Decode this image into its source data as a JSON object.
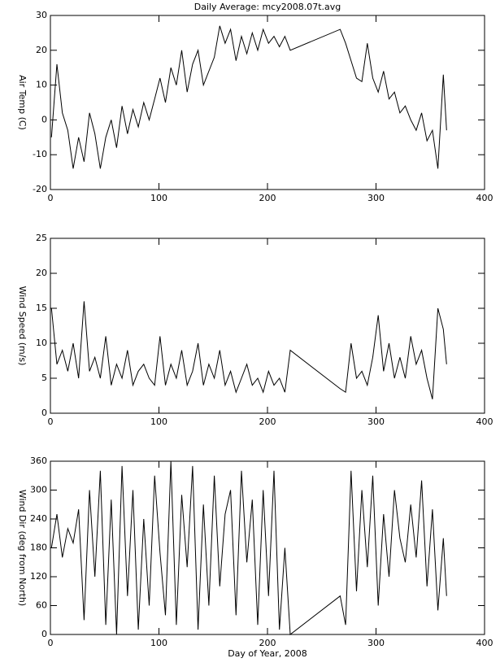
{
  "chart_data": [
    {
      "type": "line",
      "title": "Daily Average: mcy2008.07t.avg",
      "y_label": "Air Temp (C)",
      "x": [
        1,
        6,
        11,
        16,
        21,
        26,
        31,
        36,
        41,
        46,
        51,
        56,
        61,
        66,
        71,
        76,
        81,
        86,
        91,
        96,
        101,
        106,
        111,
        116,
        121,
        126,
        131,
        136,
        141,
        146,
        151,
        156,
        161,
        166,
        171,
        176,
        181,
        186,
        191,
        196,
        201,
        206,
        211,
        216,
        221,
        267,
        272,
        277,
        282,
        287,
        292,
        297,
        302,
        307,
        312,
        317,
        322,
        327,
        332,
        337,
        342,
        347,
        352,
        357,
        362,
        365
      ],
      "series": [
        {
          "name": "Air Temp",
          "color": "#000000",
          "values": [
            -5,
            16,
            2,
            -3,
            -14,
            -5,
            -12,
            2,
            -4,
            -14,
            -5,
            0,
            -8,
            4,
            -4,
            3,
            -2,
            5,
            0,
            6,
            12,
            5,
            15,
            10,
            20,
            8,
            16,
            20,
            10,
            14,
            18,
            27,
            22,
            26,
            17,
            24,
            19,
            25,
            20,
            26,
            22,
            24,
            21,
            24,
            20,
            26,
            22,
            17,
            12,
            11,
            22,
            12,
            8,
            14,
            6,
            8,
            2,
            4,
            0,
            -3,
            2,
            -6,
            -3,
            -14,
            13,
            -3
          ]
        }
      ],
      "xlim": [
        0,
        400
      ],
      "xticks": [
        0,
        100,
        200,
        300,
        400
      ],
      "ylim": [
        -20,
        30
      ],
      "yticks": [
        -20,
        -10,
        0,
        10,
        20,
        30
      ]
    },
    {
      "type": "line",
      "y_label": "Wind Speed (m/s)",
      "x": [
        1,
        6,
        11,
        16,
        21,
        26,
        31,
        36,
        41,
        46,
        51,
        56,
        61,
        66,
        71,
        76,
        81,
        86,
        91,
        96,
        101,
        106,
        111,
        116,
        121,
        126,
        131,
        136,
        141,
        146,
        151,
        156,
        161,
        166,
        171,
        176,
        181,
        186,
        191,
        196,
        201,
        206,
        211,
        216,
        221,
        267,
        272,
        277,
        282,
        287,
        292,
        297,
        302,
        307,
        312,
        317,
        322,
        327,
        332,
        337,
        342,
        347,
        352,
        357,
        362,
        365
      ],
      "series": [
        {
          "name": "Wind Speed",
          "color": "#000000",
          "values": [
            15,
            7,
            9,
            6,
            10,
            5,
            16,
            6,
            8,
            5,
            11,
            4,
            7,
            5,
            9,
            4,
            6,
            7,
            5,
            4,
            11,
            4,
            7,
            5,
            9,
            4,
            6,
            10,
            4,
            7,
            5,
            9,
            4,
            6,
            3,
            5,
            7,
            4,
            5,
            3,
            6,
            4,
            5,
            3,
            9,
            3.5,
            3,
            10,
            5,
            6,
            4,
            8,
            14,
            6,
            10,
            5,
            8,
            5,
            11,
            7,
            9,
            5,
            2,
            15,
            12,
            7
          ]
        }
      ],
      "xlim": [
        0,
        400
      ],
      "xticks": [
        0,
        100,
        200,
        300,
        400
      ],
      "ylim": [
        0,
        25
      ],
      "yticks": [
        0,
        5,
        10,
        15,
        20,
        25
      ]
    },
    {
      "type": "line",
      "y_label": "Wind Dir (deg from North)",
      "x_label": "Day of Year, 2008",
      "x": [
        1,
        6,
        11,
        16,
        21,
        26,
        31,
        36,
        41,
        46,
        51,
        56,
        61,
        66,
        71,
        76,
        81,
        86,
        91,
        96,
        101,
        106,
        111,
        116,
        121,
        126,
        131,
        136,
        141,
        146,
        151,
        156,
        161,
        166,
        171,
        176,
        181,
        186,
        191,
        196,
        201,
        206,
        211,
        216,
        221,
        267,
        272,
        277,
        282,
        287,
        292,
        297,
        302,
        307,
        312,
        317,
        322,
        327,
        332,
        337,
        342,
        347,
        352,
        357,
        362,
        365
      ],
      "series": [
        {
          "name": "Wind Dir",
          "color": "#000000",
          "values": [
            180,
            250,
            160,
            220,
            190,
            260,
            30,
            300,
            120,
            340,
            20,
            280,
            0,
            350,
            80,
            300,
            10,
            240,
            60,
            330,
            170,
            40,
            360,
            20,
            290,
            140,
            350,
            10,
            270,
            60,
            330,
            100,
            250,
            300,
            40,
            340,
            150,
            280,
            20,
            300,
            80,
            340,
            10,
            180,
            0,
            80,
            20,
            340,
            90,
            300,
            140,
            330,
            60,
            250,
            120,
            300,
            200,
            150,
            270,
            160,
            320,
            100,
            260,
            50,
            200,
            80
          ]
        }
      ],
      "xlim": [
        0,
        400
      ],
      "xticks": [
        0,
        100,
        200,
        300,
        400
      ],
      "ylim": [
        0,
        360
      ],
      "yticks": [
        0,
        60,
        120,
        180,
        240,
        300,
        360
      ]
    }
  ]
}
